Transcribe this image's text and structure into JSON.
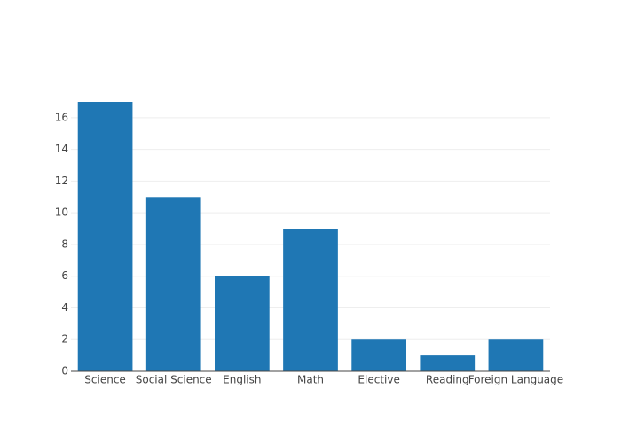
{
  "chart_data": {
    "type": "bar",
    "categories": [
      "Science",
      "Social Science",
      "English",
      "Math",
      "Elective",
      "Reading",
      "Foreign Language"
    ],
    "values": [
      17,
      11,
      6,
      9,
      2,
      1,
      2
    ],
    "color": "#1f77b4",
    "ylim": [
      0,
      17
    ],
    "yticks": [
      0,
      2,
      4,
      6,
      8,
      10,
      12,
      14,
      16
    ],
    "grid": true
  }
}
